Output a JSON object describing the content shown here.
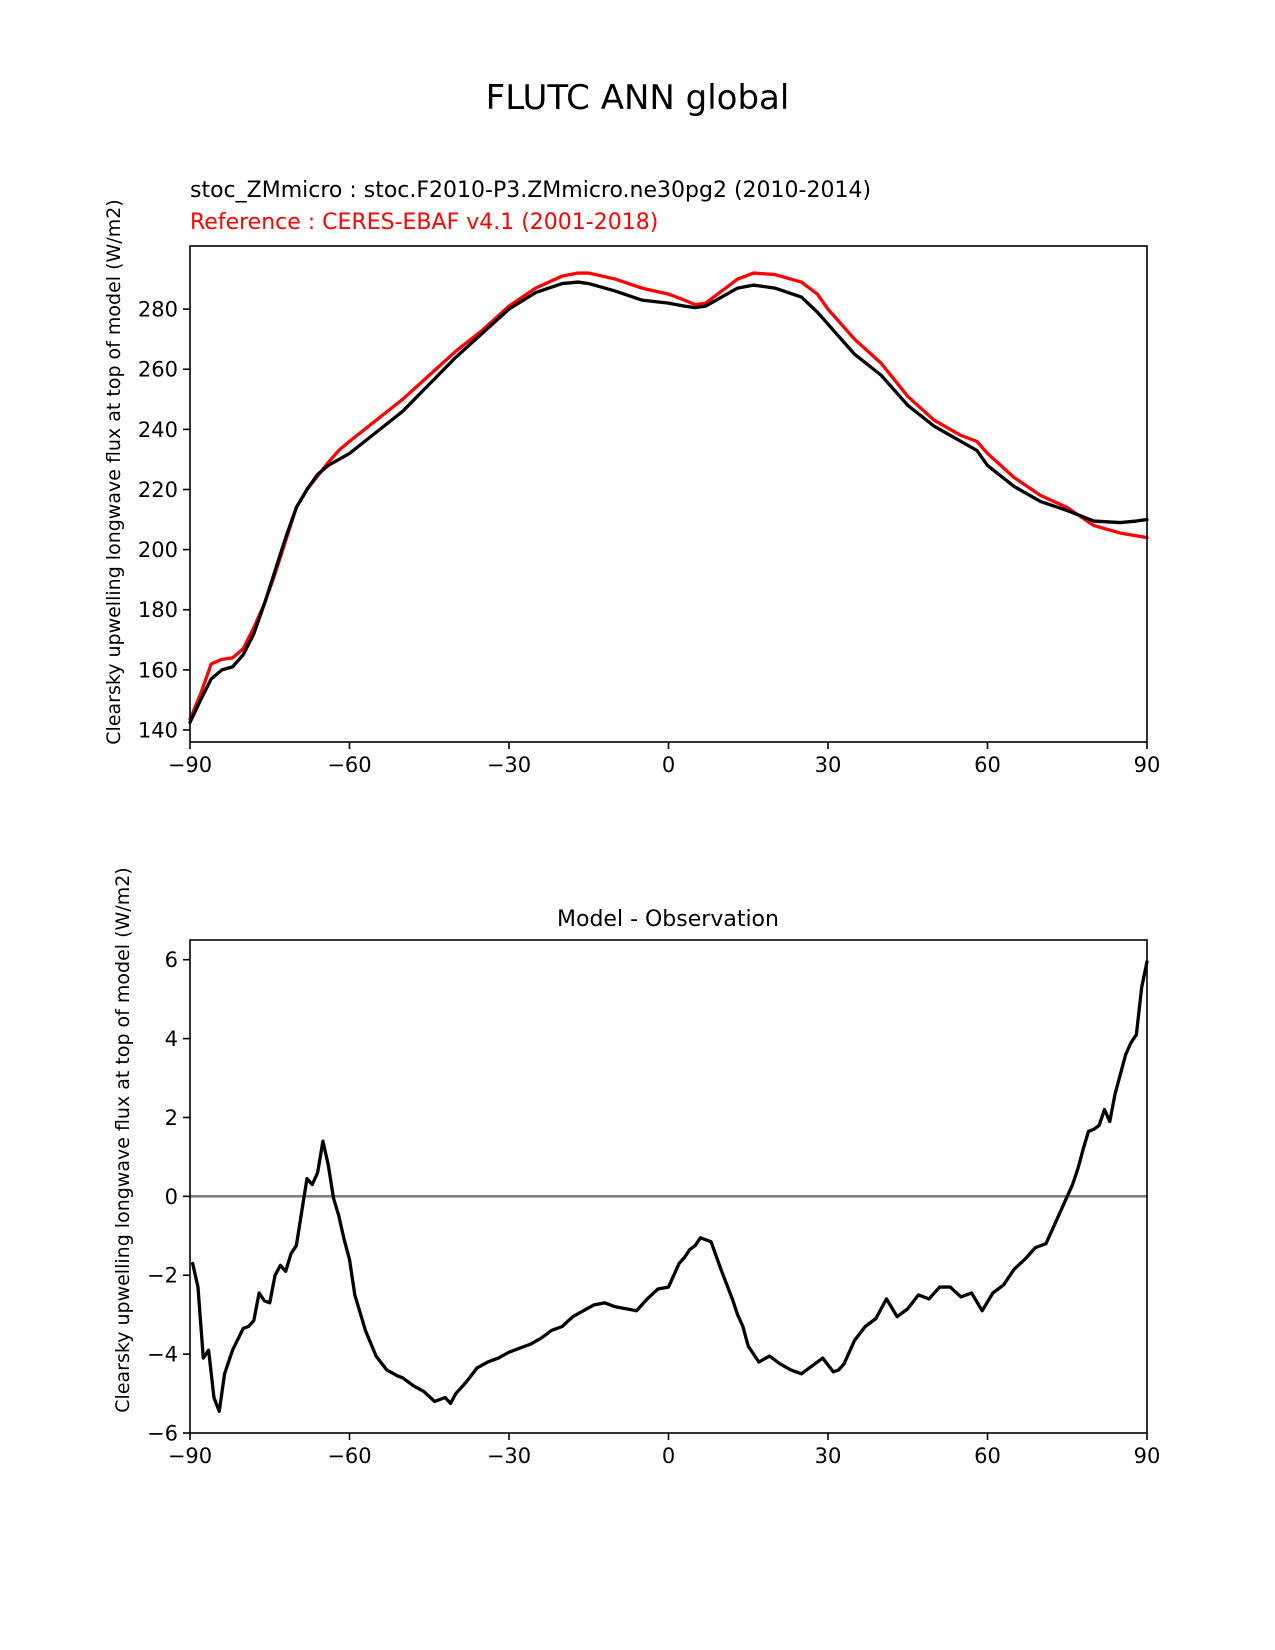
{
  "figure": {
    "suptitle": "FLUTC ANN global"
  },
  "chart_data": [
    {
      "type": "line",
      "title_model": "stoc_ZMmicro : stoc.F2010-P3.ZMmicro.ne30pg2 (2010-2014)",
      "title_reference": "Reference : CERES-EBAF v4.1 (2001-2018)",
      "ylabel": "Clearsky upwelling longwave flux at top of model (W/m2)",
      "xlabel": "",
      "xlim": [
        -90,
        90
      ],
      "ylim": [
        136,
        301
      ],
      "xticks": [
        -90,
        -60,
        -30,
        0,
        30,
        60,
        90
      ],
      "xtick_labels": [
        "−90",
        "−60",
        "−30",
        "0",
        "30",
        "60",
        "90"
      ],
      "yticks": [
        140,
        160,
        180,
        200,
        220,
        240,
        260,
        280
      ],
      "grid": false,
      "series": [
        {
          "color": "#ff0000",
          "x": [
            -90,
            -88,
            -86,
            -84,
            -82,
            -80,
            -78,
            -76,
            -74,
            -72,
            -70,
            -68,
            -66,
            -64,
            -62,
            -60,
            -55,
            -50,
            -45,
            -40,
            -35,
            -30,
            -25,
            -20,
            -17,
            -15,
            -10,
            -5,
            0,
            3,
            5,
            7,
            10,
            13,
            16,
            20,
            25,
            28,
            30,
            35,
            40,
            45,
            50,
            55,
            58,
            60,
            65,
            70,
            75,
            80,
            85,
            90
          ],
          "y": [
            143.5,
            152,
            162,
            163.5,
            164,
            167,
            174,
            182,
            192,
            203,
            214,
            220,
            224.5,
            229,
            233,
            236,
            243,
            250,
            258,
            266,
            273,
            281,
            287,
            291,
            292,
            292,
            290,
            287,
            285,
            283,
            281.5,
            282,
            286,
            290,
            292,
            291.5,
            289,
            285,
            280,
            270,
            262,
            251,
            243,
            238,
            236,
            232,
            224,
            218,
            214,
            208,
            205.5,
            204
          ]
        },
        {
          "color": "#000000",
          "x": [
            -90,
            -88,
            -86,
            -84,
            -82,
            -80,
            -78,
            -76,
            -74,
            -72,
            -70,
            -68,
            -66,
            -64,
            -62,
            -60,
            -55,
            -50,
            -45,
            -40,
            -35,
            -30,
            -25,
            -20,
            -17,
            -15,
            -10,
            -5,
            0,
            3,
            5,
            7,
            10,
            13,
            16,
            20,
            25,
            28,
            30,
            35,
            40,
            45,
            50,
            55,
            58,
            60,
            65,
            70,
            75,
            80,
            85,
            88,
            90
          ],
          "y": [
            142.5,
            150,
            157,
            160,
            161,
            165,
            172,
            182,
            193,
            204,
            214,
            220,
            225,
            228,
            230,
            232,
            239,
            246,
            255,
            264,
            272,
            280,
            285.5,
            288.5,
            289,
            288.5,
            286,
            283,
            282,
            281,
            280.5,
            281,
            284,
            287,
            288,
            287,
            284,
            279,
            275,
            265,
            258,
            248,
            241,
            236,
            233,
            228,
            221,
            216,
            213,
            209.5,
            209,
            209.5,
            210
          ]
        }
      ]
    },
    {
      "type": "line",
      "title": "Model - Observation",
      "ylabel": "Clearsky upwelling longwave flux at top of model (W/m2)",
      "xlabel": "",
      "xlim": [
        -90,
        90
      ],
      "ylim": [
        -6,
        6.5
      ],
      "xticks": [
        -90,
        -60,
        -30,
        0,
        30,
        60,
        90
      ],
      "xtick_labels": [
        "−90",
        "−60",
        "−30",
        "0",
        "30",
        "60",
        "90"
      ],
      "yticks": [
        -6,
        -4,
        -2,
        0,
        2,
        4,
        6
      ],
      "ytick_labels": [
        "−6",
        "−4",
        "−2",
        "0",
        "2",
        "4",
        "6"
      ],
      "zero_line_color": "#808080",
      "grid": false,
      "series": [
        {
          "color": "#000000",
          "x": [
            -89.5,
            -88.5,
            -87.5,
            -86.5,
            -85.5,
            -84.5,
            -83.5,
            -82,
            -80,
            -79,
            -78,
            -77,
            -76,
            -75,
            -74,
            -73,
            -72,
            -71,
            -70,
            -69,
            -68,
            -67,
            -66,
            -65,
            -64,
            -63,
            -62,
            -61,
            -60,
            -59,
            -57,
            -55,
            -53,
            -51,
            -50,
            -48,
            -46,
            -44,
            -42,
            -41,
            -40,
            -38,
            -36,
            -34,
            -32,
            -30,
            -28,
            -26,
            -24,
            -22,
            -20,
            -18,
            -16,
            -14,
            -12,
            -10,
            -8,
            -6,
            -4,
            -2,
            0,
            2,
            3,
            4,
            5,
            6,
            7,
            8,
            10,
            12,
            13,
            14,
            15,
            17,
            19,
            21,
            23,
            25,
            27,
            29,
            31,
            32,
            33,
            35,
            37,
            39,
            41,
            43,
            45,
            47,
            49,
            51,
            53,
            55,
            57,
            59,
            61,
            63,
            65,
            67,
            69,
            71,
            73,
            74,
            75,
            76,
            77,
            78,
            79,
            80,
            81,
            82,
            83,
            84,
            85,
            86,
            87,
            88,
            89,
            90
          ],
          "y": [
            -1.7,
            -2.3,
            -4.1,
            -3.9,
            -5.1,
            -5.45,
            -4.5,
            -3.9,
            -3.35,
            -3.3,
            -3.15,
            -2.45,
            -2.65,
            -2.7,
            -2.0,
            -1.75,
            -1.9,
            -1.45,
            -1.25,
            -0.4,
            0.45,
            0.3,
            0.6,
            1.4,
            0.8,
            -0.05,
            -0.5,
            -1.1,
            -1.6,
            -2.5,
            -3.4,
            -4.05,
            -4.4,
            -4.55,
            -4.6,
            -4.8,
            -4.95,
            -5.2,
            -5.1,
            -5.25,
            -5.0,
            -4.7,
            -4.35,
            -4.2,
            -4.1,
            -3.95,
            -3.85,
            -3.75,
            -3.6,
            -3.4,
            -3.3,
            -3.05,
            -2.9,
            -2.75,
            -2.7,
            -2.8,
            -2.85,
            -2.9,
            -2.6,
            -2.35,
            -2.3,
            -1.7,
            -1.55,
            -1.35,
            -1.25,
            -1.05,
            -1.1,
            -1.15,
            -1.9,
            -2.6,
            -3.0,
            -3.3,
            -3.8,
            -4.2,
            -4.05,
            -4.25,
            -4.4,
            -4.5,
            -4.3,
            -4.1,
            -4.45,
            -4.4,
            -4.25,
            -3.65,
            -3.3,
            -3.1,
            -2.6,
            -3.05,
            -2.85,
            -2.5,
            -2.6,
            -2.3,
            -2.3,
            -2.55,
            -2.45,
            -2.9,
            -2.45,
            -2.25,
            -1.85,
            -1.6,
            -1.3,
            -1.2,
            -0.6,
            -0.3,
            0.0,
            0.3,
            0.7,
            1.2,
            1.65,
            1.7,
            1.8,
            2.2,
            1.9,
            2.6,
            3.1,
            3.6,
            3.9,
            4.1,
            5.3,
            5.95
          ]
        }
      ]
    }
  ]
}
